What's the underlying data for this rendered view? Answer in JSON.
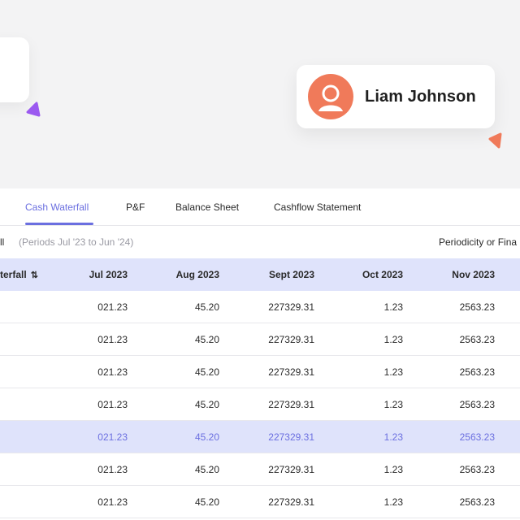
{
  "user": {
    "name": "Liam Johnson"
  },
  "colors": {
    "accent": "#6b6fe0",
    "avatar": "#f07a5a",
    "triangle_purple": "#9b59f0",
    "triangle_orange": "#f07a5a"
  },
  "tabs": [
    {
      "label": "Cash Waterfall",
      "active": true
    },
    {
      "label": "P&F",
      "active": false
    },
    {
      "label": "Balance Sheet",
      "active": false
    },
    {
      "label": "Cashflow Statement",
      "active": false
    }
  ],
  "subbar": {
    "crumb": "ll",
    "period": "(Periods Jul '23 to Jun '24)",
    "periodicity": "Periodicity or Fina"
  },
  "table": {
    "headers": [
      "terfall",
      "Jul 2023",
      "Aug 2023",
      "Sept 2023",
      "Oct 2023",
      "Nov 2023"
    ],
    "sort_icon": "sort-arrows-icon",
    "rows": [
      [
        "",
        "021.23",
        "45.20",
        "227329.31",
        "1.23",
        "2563.23"
      ],
      [
        "",
        "021.23",
        "45.20",
        "227329.31",
        "1.23",
        "2563.23"
      ],
      [
        "",
        "021.23",
        "45.20",
        "227329.31",
        "1.23",
        "2563.23"
      ],
      [
        "",
        "021.23",
        "45.20",
        "227329.31",
        "1.23",
        "2563.23"
      ],
      [
        "",
        "021.23",
        "45.20",
        "227329.31",
        "1.23",
        "2563.23"
      ],
      [
        "",
        "021.23",
        "45.20",
        "227329.31",
        "1.23",
        "2563.23"
      ],
      [
        "",
        "021.23",
        "45.20",
        "227329.31",
        "1.23",
        "2563.23"
      ]
    ],
    "highlighted_row": 4
  }
}
